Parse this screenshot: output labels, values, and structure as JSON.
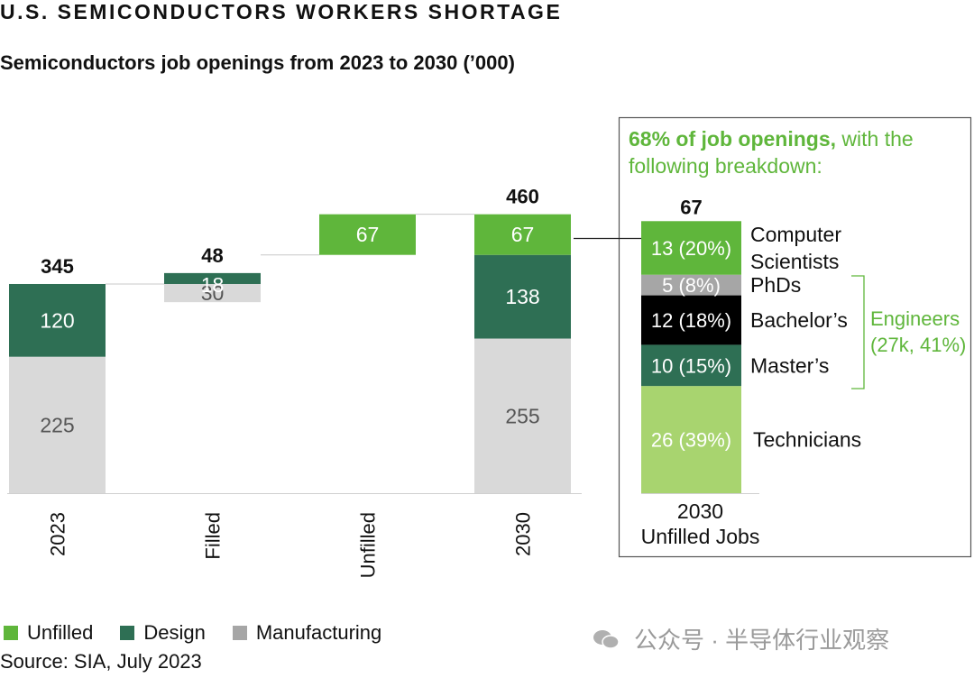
{
  "header": {
    "title": "U.S. SEMICONDUCTORS WORKERS SHORTAGE",
    "subtitle": "Semiconductors job openings from 2023 to 2030 (’000)"
  },
  "colors": {
    "unfilled": "#5fb63b",
    "design": "#2e6f54",
    "manufacturing": "#d9d9d9",
    "phds": "#a6a6a6",
    "bachelors": "#000000",
    "technicians": "#a8d46f",
    "accent_text": "#5fb63b"
  },
  "chart_data": [
    {
      "type": "bar",
      "title": "Semiconductors job openings from 2023 to 2030 (’000)",
      "categories": [
        "2023",
        "Filled",
        "Unfilled",
        "2030"
      ],
      "totals": [
        "345",
        "48",
        "",
        "460"
      ],
      "segments": [
        [
          {
            "series": "Manufacturing",
            "start": 0,
            "value": 225,
            "label": "225"
          },
          {
            "series": "Design",
            "start": 225,
            "value": 120,
            "label": "120"
          }
        ],
        [
          {
            "series": "Manufacturing",
            "start": 315,
            "value": 30,
            "label": "30"
          },
          {
            "series": "Design",
            "start": 345,
            "value": 18,
            "label": "18"
          }
        ],
        [
          {
            "series": "Unfilled",
            "start": 393,
            "value": 67,
            "label": "67"
          }
        ],
        [
          {
            "series": "Manufacturing",
            "start": 0,
            "value": 255,
            "label": "255"
          },
          {
            "series": "Design",
            "start": 255,
            "value": 138,
            "label": "138"
          },
          {
            "series": "Unfilled",
            "start": 393,
            "value": 67,
            "label": "67"
          }
        ]
      ],
      "ylim": [
        0,
        460
      ],
      "legend": [
        "Unfilled",
        "Design",
        "Manufacturing"
      ],
      "legend_position": "bottom-left"
    },
    {
      "type": "bar",
      "title": "68% of job openings, with the following breakdown:",
      "category": "2030 Unfilled Jobs",
      "total": "67",
      "segments": [
        {
          "name": "Technicians",
          "value": 26,
          "label": "26 (39%)"
        },
        {
          "name": "Master’s",
          "value": 10,
          "label": "10 (15%)"
        },
        {
          "name": "Bachelor’s",
          "value": 12,
          "label": "12 (18%)"
        },
        {
          "name": "PhDs",
          "value": 5,
          "label": "5 (8%)"
        },
        {
          "name": "Computer Scientists",
          "value": 13,
          "label": "13 (20%)"
        }
      ],
      "group_annotation": "Engineers (27k, 41%)"
    }
  ],
  "breakdown": {
    "title_bold": "68% of job openings,",
    "title_rest": " with the",
    "title_line2": "following breakdown:",
    "total": "67",
    "category_line1": "2030",
    "category_line2": "Unfilled Jobs",
    "name_lines": [
      [
        "Technicians"
      ],
      [
        "Master’s"
      ],
      [
        "Bachelor’s"
      ],
      [
        "PhDs"
      ],
      [
        "Computer",
        "Scientists"
      ]
    ],
    "engineers_line1": "Engineers",
    "engineers_line2": "(27k, 41%)"
  },
  "legend": {
    "unfilled": "Unfilled",
    "design": "Design",
    "manufacturing": "Manufacturing"
  },
  "source": "Source: SIA, July 2023",
  "watermark": "公众号 · 半导体行业观察"
}
